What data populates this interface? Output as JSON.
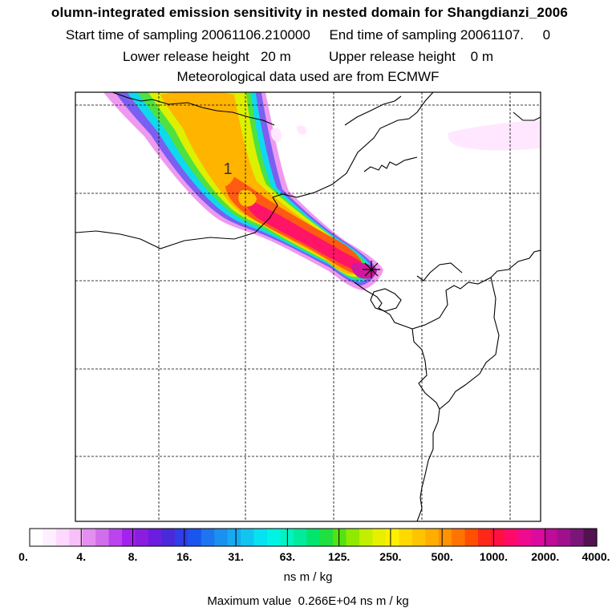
{
  "titles": {
    "line1": "olumn-integrated emission sensitivity in nested domain for Shangdianzi_2006",
    "line2": "Start time of sampling 20061106.210000     End time of sampling 20061107.     0",
    "line3": "Lower release height   20 m          Upper release height    0 m",
    "line4": "Meteorological data used are from ECMWF"
  },
  "map": {
    "contour_label": "1",
    "release_marker_icon": "asterisk-star-icon"
  },
  "colorbar": {
    "labels": [
      "0.",
      "4.",
      "8.",
      "16.",
      "31.",
      "63.",
      "125.",
      "250.",
      "500.",
      "1000.",
      "2000.",
      "4000."
    ],
    "colors": [
      "#ffffff",
      "#ffeeff",
      "#ffd8ff",
      "#f8bff8",
      "#e38ef0",
      "#d16ee9",
      "#bb44ee",
      "#a322ee",
      "#8a1de0",
      "#6b1de0",
      "#4a2ad8",
      "#2f3ee8",
      "#1a55ee",
      "#1f74f0",
      "#1b91ef",
      "#16aaf0",
      "#10c6f0",
      "#07e2f0",
      "#00f3e4",
      "#00f3c0",
      "#00ec9c",
      "#00e56b",
      "#20e040",
      "#55e310",
      "#8fea00",
      "#c2ef00",
      "#e8ef00",
      "#fff000",
      "#ffda00",
      "#ffc400",
      "#ffae00",
      "#ff9200",
      "#ff7400",
      "#ff4f00",
      "#ff2818",
      "#ff1040",
      "#ff0a6a",
      "#f00a8e",
      "#dc0a9e",
      "#c00a98",
      "#a0108c",
      "#7a1678",
      "#521250"
    ],
    "units": "ns m / kg"
  },
  "footer": {
    "maximum": "Maximum value  0.266E+04 ns m / kg"
  }
}
